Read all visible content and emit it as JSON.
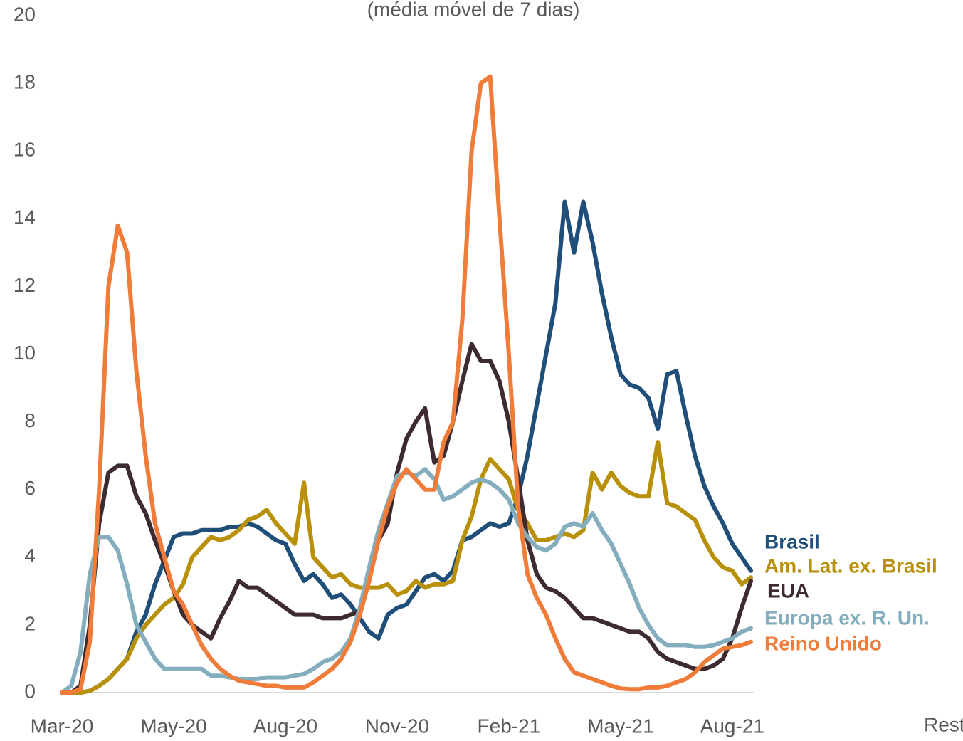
{
  "chart_data": {
    "type": "line",
    "subtitle": "(média móvel de 7 dias)",
    "annotation": "Rest",
    "categories": [
      "Mar-20",
      null,
      null,
      null,
      null,
      null,
      null,
      null,
      null,
      null,
      null,
      null,
      "May-20",
      null,
      null,
      null,
      null,
      null,
      null,
      null,
      null,
      null,
      null,
      null,
      "Aug-20",
      null,
      null,
      null,
      null,
      null,
      null,
      null,
      null,
      null,
      null,
      null,
      "Nov-20",
      null,
      null,
      null,
      null,
      null,
      null,
      null,
      null,
      null,
      null,
      null,
      "Feb-21",
      null,
      null,
      null,
      null,
      null,
      null,
      null,
      null,
      null,
      null,
      null,
      "May-21",
      null,
      null,
      null,
      null,
      null,
      null,
      null,
      null,
      null,
      null,
      null,
      "Aug-21",
      null,
      null
    ],
    "ylim": [
      0,
      20
    ],
    "yticks": [
      0,
      2,
      4,
      6,
      8,
      10,
      12,
      14,
      16,
      18,
      20
    ],
    "grid": false,
    "series": [
      {
        "name": "Brasil",
        "color": "#1f4e79",
        "values": [
          0,
          0,
          0,
          0.05,
          0.2,
          0.4,
          0.7,
          1.0,
          1.8,
          2.3,
          3.2,
          3.9,
          4.6,
          4.7,
          4.7,
          4.8,
          4.8,
          4.8,
          4.9,
          4.9,
          5,
          4.9,
          4.7,
          4.5,
          4.4,
          3.8,
          3.3,
          3.5,
          3.2,
          2.8,
          2.9,
          2.6,
          2.2,
          1.8,
          1.6,
          2.3,
          2.5,
          2.6,
          3,
          3.4,
          3.5,
          3.3,
          3.6,
          4.5,
          4.6,
          4.8,
          5,
          4.9,
          5,
          5.8,
          7,
          8.5,
          10,
          11.5,
          14.5,
          13,
          14.5,
          13.3,
          11.8,
          10.5,
          9.4,
          9.1,
          9,
          8.7,
          7.8,
          9.4,
          9.5,
          8.2,
          7,
          6.1,
          5.5,
          5,
          4.4,
          4,
          3.6
        ]
      },
      {
        "name": "Am. Lat. ex. Brasil",
        "color": "#b8900a",
        "values": [
          0,
          0,
          0,
          0.05,
          0.2,
          0.4,
          0.7,
          1.0,
          1.6,
          2,
          2.3,
          2.6,
          2.8,
          3.2,
          4,
          4.3,
          4.6,
          4.5,
          4.6,
          4.8,
          5.1,
          5.2,
          5.4,
          5,
          4.7,
          4.4,
          6.2,
          4,
          3.7,
          3.4,
          3.5,
          3.2,
          3.1,
          3.1,
          3.1,
          3.2,
          2.9,
          3.0,
          3.3,
          3.1,
          3.2,
          3.2,
          3.3,
          4.5,
          5.2,
          6.3,
          6.9,
          6.6,
          6.3,
          5.4,
          5,
          4.5,
          4.5,
          4.6,
          4.7,
          4.6,
          4.8,
          6.5,
          6,
          6.5,
          6.1,
          5.9,
          5.8,
          5.8,
          7.4,
          5.6,
          5.5,
          5.3,
          5.1,
          4.5,
          4,
          3.7,
          3.6,
          3.2,
          3.4
        ]
      },
      {
        "name": "EUA",
        "color": "#3d2b30",
        "values": [
          0,
          0,
          0.2,
          2,
          5,
          6.5,
          6.7,
          6.7,
          5.8,
          5.3,
          4.5,
          3.8,
          3,
          2.3,
          2,
          1.8,
          1.6,
          2.2,
          2.7,
          3.3,
          3.1,
          3.1,
          2.9,
          2.7,
          2.5,
          2.3,
          2.3,
          2.3,
          2.2,
          2.2,
          2.2,
          2.3,
          2.4,
          3.5,
          4.5,
          5,
          6.5,
          7.5,
          8,
          8.4,
          6.8,
          7,
          8,
          9.2,
          10.3,
          9.8,
          9.8,
          9.2,
          8,
          6.3,
          4.5,
          3.5,
          3.1,
          3,
          2.8,
          2.5,
          2.2,
          2.2,
          2.1,
          2,
          1.9,
          1.8,
          1.8,
          1.6,
          1.2,
          1,
          0.9,
          0.8,
          0.7,
          0.7,
          0.8,
          1,
          1.6,
          2.5,
          3.3
        ]
      },
      {
        "name": "Europa ex. R. Un.",
        "color": "#84aebe",
        "values": [
          0,
          0.2,
          1.2,
          3.5,
          4.6,
          4.6,
          4.2,
          3.2,
          2,
          1.5,
          1.0,
          0.7,
          0.7,
          0.7,
          0.7,
          0.7,
          0.5,
          0.5,
          0.45,
          0.4,
          0.4,
          0.4,
          0.45,
          0.45,
          0.45,
          0.5,
          0.55,
          0.7,
          0.9,
          1,
          1.2,
          1.6,
          2.5,
          3.7,
          4.8,
          5.6,
          6.4,
          6.5,
          6.4,
          6.6,
          6.3,
          5.7,
          5.8,
          6,
          6.2,
          6.3,
          6.2,
          6,
          5.7,
          5,
          4.6,
          4.3,
          4.2,
          4.4,
          4.9,
          5,
          4.9,
          5.3,
          4.8,
          4.4,
          3.8,
          3.2,
          2.5,
          2,
          1.6,
          1.4,
          1.4,
          1.4,
          1.35,
          1.35,
          1.4,
          1.5,
          1.6,
          1.8,
          1.9
        ]
      },
      {
        "name": "Reino Unido",
        "color": "#f07c3a",
        "values": [
          0,
          0,
          0.1,
          1.5,
          6,
          12,
          13.8,
          13,
          9.5,
          7,
          5,
          4,
          3,
          2.6,
          2,
          1.4,
          1,
          0.7,
          0.5,
          0.35,
          0.3,
          0.25,
          0.2,
          0.2,
          0.15,
          0.15,
          0.15,
          0.3,
          0.5,
          0.7,
          1,
          1.5,
          2.3,
          3.3,
          4.5,
          5.5,
          6.2,
          6.6,
          6.3,
          6,
          6,
          7.4,
          8,
          11,
          16,
          18,
          18.2,
          14,
          10,
          5.5,
          3.5,
          2.8,
          2.3,
          1.6,
          1,
          0.6,
          0.5,
          0.4,
          0.3,
          0.2,
          0.12,
          0.1,
          0.1,
          0.15,
          0.15,
          0.2,
          0.3,
          0.4,
          0.6,
          0.9,
          1.1,
          1.3,
          1.35,
          1.4,
          1.5
        ]
      }
    ]
  }
}
